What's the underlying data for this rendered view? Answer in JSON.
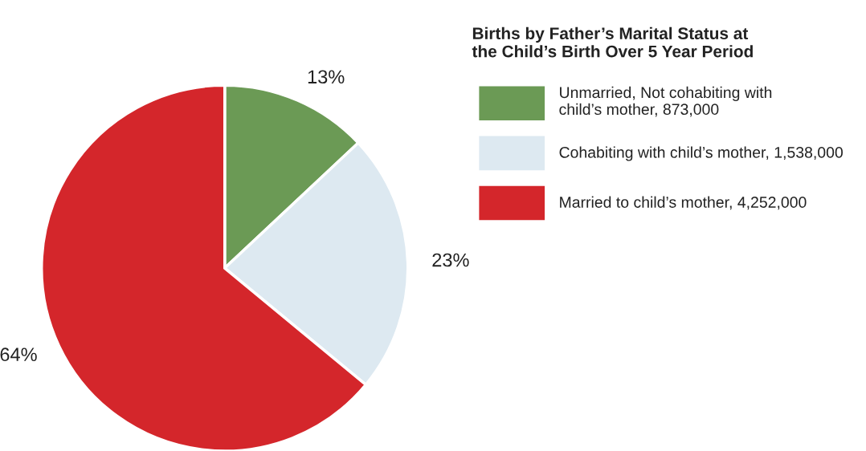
{
  "chart_data": {
    "type": "pie",
    "title": "Births by Father’s Marital Status at\nthe Child’s Birth Over 5 Year Period",
    "categories": [
      "Unmarried, Not cohabiting with\nchild’s mother, 873,000",
      "Cohabiting with child’s mother, 1,538,000",
      "Married to child’s mother, 4,252,000"
    ],
    "values": [
      13,
      23,
      64
    ],
    "value_labels": [
      "13%",
      "23%",
      "64%"
    ],
    "colors": [
      "#6b9a55",
      "#dde9f1",
      "#d4262b"
    ],
    "legend": "right"
  }
}
